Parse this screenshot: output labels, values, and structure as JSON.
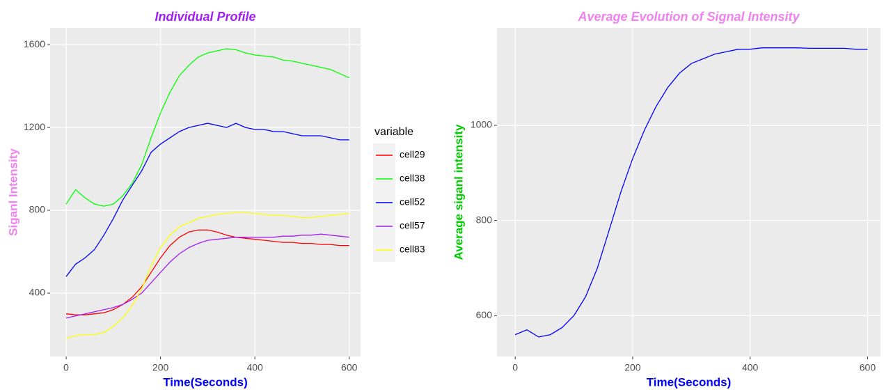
{
  "chart_data": [
    {
      "type": "line",
      "title": "Individual Profile",
      "title_color": "#a020f0",
      "xlabel": "Time(Seconds)",
      "xlabel_color": "#0000ff",
      "ylabel": "Siganl Intensity",
      "ylabel_color": "#ee82ee",
      "x": [
        0,
        20,
        40,
        60,
        80,
        100,
        120,
        140,
        160,
        180,
        200,
        220,
        240,
        260,
        280,
        300,
        320,
        340,
        360,
        380,
        400,
        420,
        440,
        460,
        480,
        500,
        520,
        540,
        560,
        580,
        600
      ],
      "series": [
        {
          "name": "cell29",
          "color": "#ff0000",
          "values": [
            300,
            295,
            295,
            300,
            305,
            320,
            345,
            380,
            430,
            500,
            570,
            630,
            670,
            695,
            705,
            705,
            695,
            680,
            670,
            665,
            660,
            655,
            650,
            645,
            645,
            640,
            640,
            635,
            635,
            630,
            630
          ]
        },
        {
          "name": "cell38",
          "color": "#00ff00",
          "values": [
            830,
            900,
            860,
            830,
            820,
            830,
            870,
            930,
            1020,
            1150,
            1270,
            1370,
            1450,
            1500,
            1540,
            1560,
            1570,
            1580,
            1575,
            1560,
            1550,
            1545,
            1540,
            1525,
            1520,
            1510,
            1500,
            1490,
            1480,
            1460,
            1440
          ]
        },
        {
          "name": "cell52",
          "color": "#0000ff",
          "values": [
            480,
            540,
            570,
            610,
            680,
            760,
            850,
            920,
            990,
            1080,
            1120,
            1150,
            1180,
            1200,
            1210,
            1220,
            1210,
            1200,
            1220,
            1200,
            1190,
            1190,
            1180,
            1180,
            1170,
            1160,
            1160,
            1160,
            1150,
            1140,
            1140
          ]
        },
        {
          "name": "cell57",
          "color": "#a020f0",
          "values": [
            280,
            290,
            300,
            310,
            320,
            330,
            345,
            370,
            400,
            450,
            500,
            550,
            590,
            620,
            640,
            655,
            660,
            665,
            670,
            670,
            670,
            670,
            670,
            675,
            675,
            680,
            680,
            685,
            680,
            675,
            670
          ]
        },
        {
          "name": "cell83",
          "color": "#ffff00",
          "values": [
            180,
            195,
            200,
            200,
            210,
            240,
            280,
            340,
            420,
            530,
            620,
            680,
            720,
            740,
            760,
            770,
            780,
            785,
            790,
            790,
            785,
            780,
            775,
            775,
            770,
            765,
            765,
            770,
            775,
            780,
            785
          ]
        }
      ],
      "legend_title": "variable",
      "xlim": [
        -34,
        624
      ],
      "ylim": [
        94,
        1681
      ],
      "xticks": [
        0,
        200,
        400,
        600
      ],
      "yticks": [
        400,
        800,
        1200,
        1600
      ],
      "grid": true
    },
    {
      "type": "line",
      "title": "Average Evolution of Signal Intensity",
      "title_color": "#ee82ee",
      "xlabel": "Time(Seconds)",
      "xlabel_color": "#0000ff",
      "ylabel": "Average siganl intensity",
      "ylabel_color": "#00cc00",
      "x": [
        0,
        20,
        40,
        60,
        80,
        100,
        120,
        140,
        160,
        180,
        200,
        220,
        240,
        260,
        280,
        300,
        320,
        340,
        360,
        380,
        400,
        420,
        440,
        460,
        480,
        500,
        520,
        540,
        560,
        580,
        600
      ],
      "series": [
        {
          "color": "#0000ff",
          "values": [
            560,
            570,
            555,
            560,
            575,
            600,
            640,
            700,
            780,
            860,
            930,
            990,
            1040,
            1080,
            1110,
            1130,
            1140,
            1150,
            1155,
            1160,
            1160,
            1163,
            1163,
            1163,
            1163,
            1162,
            1162,
            1162,
            1162,
            1160,
            1160
          ]
        }
      ],
      "xlim": [
        -31,
        622
      ],
      "ylim": [
        514,
        1205
      ],
      "xticks": [
        0,
        200,
        400,
        600
      ],
      "yticks": [
        600,
        800,
        1000
      ],
      "grid": true
    }
  ]
}
